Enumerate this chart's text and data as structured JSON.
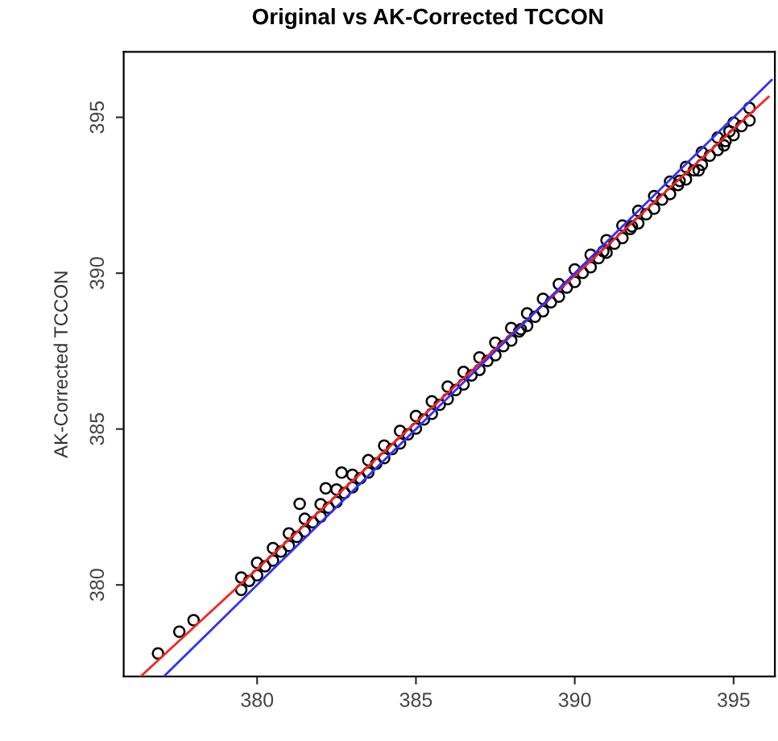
{
  "chart_data": {
    "type": "scatter",
    "title": "Original vs AK-Corrected TCCON",
    "ylabel": "AK-Corrected TCCON",
    "xlim": [
      375.8,
      396.3
    ],
    "ylim": [
      377.06,
      397.1
    ],
    "xticks": [
      380,
      385,
      390,
      395
    ],
    "yticks": [
      380,
      385,
      390,
      395
    ],
    "grid": false,
    "legend": false,
    "series": [
      {
        "marker": "circle",
        "color": "#000000",
        "x": [
          379.5,
          380.0,
          380.5,
          381.0,
          381.5,
          382.0,
          382.5,
          383.0,
          383.5,
          384.0,
          384.5,
          385.0,
          385.5,
          386.0,
          386.5,
          387.0,
          387.5,
          388.0,
          388.5,
          389.0,
          389.5,
          390.0,
          390.5,
          391.0,
          391.5,
          392.0,
          392.5,
          393.0,
          393.5,
          394.0,
          394.5,
          395.0,
          395.5,
          379.75,
          380.25,
          380.75,
          381.25,
          381.75,
          382.25,
          382.75,
          383.25,
          383.75,
          384.25,
          384.75,
          385.25,
          385.75,
          386.25,
          386.75,
          387.25,
          387.75,
          388.25,
          388.75,
          389.25,
          389.75,
          390.25,
          390.75,
          391.25,
          391.75,
          392.25,
          392.75,
          393.25,
          393.75,
          394.25,
          394.75,
          395.25,
          379.5,
          380.0,
          380.5,
          381.0,
          381.5,
          382.0,
          382.5,
          383.0,
          383.5,
          384.0,
          384.5,
          385.0,
          385.5,
          386.0,
          386.5,
          387.0,
          387.5,
          388.0,
          388.5,
          389.0,
          389.5,
          390.0,
          390.5,
          391.0,
          391.5,
          392.0,
          392.5,
          393.0,
          393.5,
          394.0,
          394.5,
          395.0,
          395.5,
          376.88,
          377.55,
          378.0,
          394.87,
          394.7,
          393.9,
          393.3,
          391.8,
          390.9,
          388.3,
          381.34,
          382.16,
          382.66
        ],
        "values": [
          380.24,
          380.71,
          381.18,
          381.65,
          382.12,
          382.59,
          383.06,
          383.53,
          384.0,
          384.47,
          384.94,
          385.42,
          385.89,
          386.36,
          386.83,
          387.3,
          387.77,
          388.24,
          388.71,
          389.18,
          389.65,
          390.12,
          390.59,
          391.06,
          391.53,
          392.0,
          392.47,
          392.94,
          393.41,
          393.88,
          394.35,
          394.83,
          395.3,
          380.13,
          380.6,
          381.07,
          381.54,
          382.01,
          382.48,
          382.95,
          383.42,
          383.89,
          384.36,
          384.83,
          385.31,
          385.78,
          386.25,
          386.72,
          387.19,
          387.66,
          388.13,
          388.6,
          389.07,
          389.54,
          390.01,
          390.48,
          390.95,
          391.42,
          391.89,
          392.36,
          392.83,
          393.3,
          393.77,
          394.24,
          394.72,
          379.84,
          380.31,
          380.78,
          381.25,
          381.72,
          382.19,
          382.66,
          383.13,
          383.6,
          384.07,
          384.54,
          385.02,
          385.49,
          385.96,
          386.43,
          386.9,
          387.37,
          387.84,
          388.31,
          388.78,
          389.25,
          389.72,
          390.19,
          390.66,
          391.13,
          391.6,
          392.07,
          392.54,
          393.01,
          393.48,
          393.95,
          394.43,
          394.9,
          377.8,
          378.5,
          378.87,
          394.55,
          394.1,
          393.3,
          392.96,
          391.5,
          390.7,
          388.2,
          382.6,
          383.1,
          383.6
        ]
      },
      {
        "type": "line",
        "marker": "none",
        "color": "#ff2020",
        "x": [
          376.33,
          396.1
        ],
        "values": [
          377.06,
          395.66
        ]
      },
      {
        "type": "line",
        "marker": "none",
        "color": "#3030ff",
        "x": [
          377.06,
          396.2
        ],
        "values": [
          377.06,
          396.2
        ]
      }
    ]
  }
}
